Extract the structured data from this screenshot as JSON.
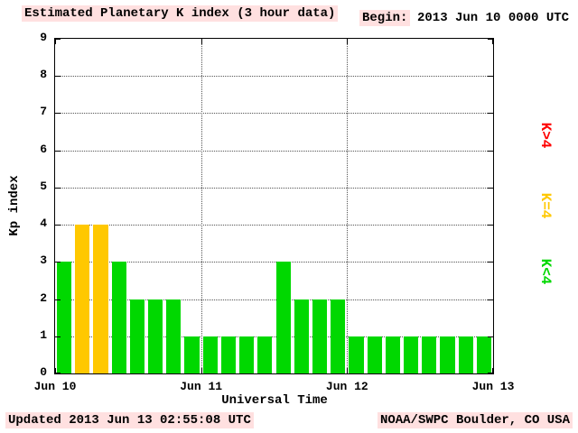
{
  "header": {
    "title": "Estimated Planetary K index (3 hour data)",
    "begin_label": "Begin:",
    "begin_value": "2013 Jun 10 0000 UTC"
  },
  "footer": {
    "updated": "Updated 2013 Jun 13 02:55:08 UTC",
    "source": "NOAA/SWPC Boulder, CO USA"
  },
  "colors": {
    "bar_low": "#00d800",
    "bar_mid": "#ffc800",
    "bar_high": "#ff0000",
    "highlight": "#ffe0e0",
    "grid": "#555555"
  },
  "chart_data": {
    "type": "bar",
    "title": "Estimated Planetary K index (3 hour data)",
    "xlabel": "Universal Time",
    "ylabel": "Kp index",
    "ylim": [
      0,
      9
    ],
    "y_ticks": [
      0,
      1,
      2,
      3,
      4,
      5,
      6,
      7,
      8,
      9
    ],
    "x_tick_labels": [
      "Jun 10",
      "Jun 11",
      "Jun 12",
      "Jun 13"
    ],
    "bars_per_day": 8,
    "bar_interval_hours": 3,
    "values": [
      3,
      4,
      4,
      3,
      2,
      2,
      2,
      1,
      1,
      1,
      1,
      1,
      3,
      2,
      2,
      2,
      1,
      1,
      1,
      1,
      1,
      1,
      1,
      1
    ],
    "color_rule": "green if K<4, yellow if K=4, red if K>4",
    "grid": "dotted horizontal lines at each Kp level, dotted vertical lines at day boundaries",
    "legend_position": "right",
    "legend": [
      {
        "label": "K>4",
        "color": "#ff0000"
      },
      {
        "label": "K=4",
        "color": "#ffc800"
      },
      {
        "label": "K<4",
        "color": "#00d800"
      }
    ]
  }
}
